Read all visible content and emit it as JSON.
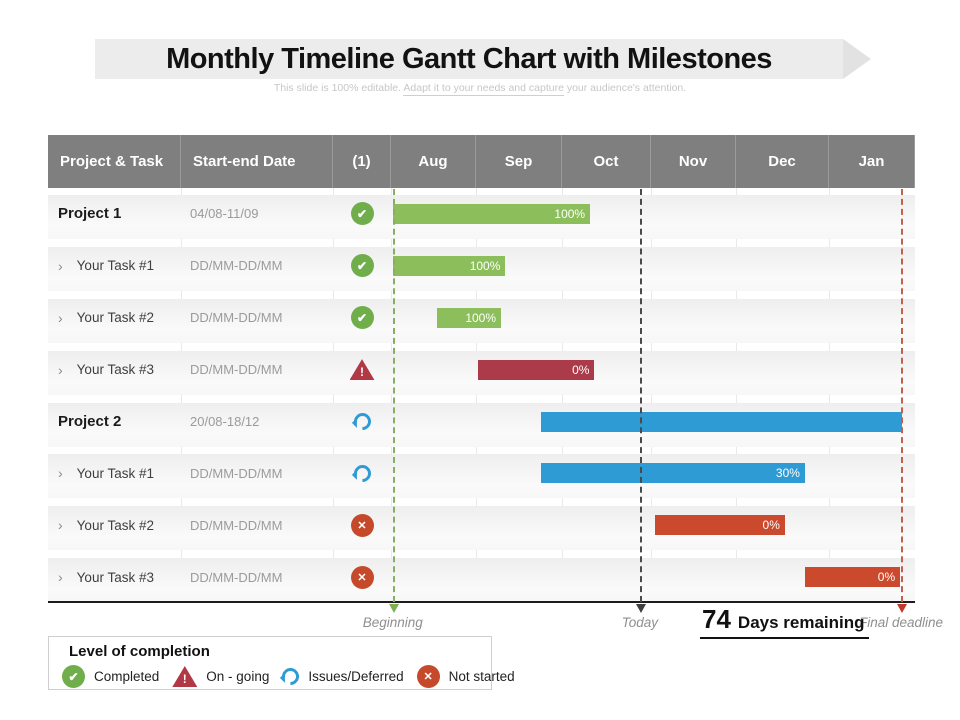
{
  "banner": {
    "title": "Monthly Timeline Gantt Chart with Milestones",
    "subtitle_prefix": "This slide is 100% editable. ",
    "subtitle_underlined": "Adapt it to your needs and capture",
    "subtitle_suffix": " your audience's attention."
  },
  "table": {
    "headers": [
      "Project & Task",
      "Start-end Date",
      "(1)",
      "Aug",
      "Sep",
      "Oct",
      "Nov",
      "Dec",
      "Jan"
    ],
    "task_prefix": "›"
  },
  "chart_data": {
    "type": "bar",
    "subtype": "gantt-timeline",
    "months": [
      "Aug",
      "Sep",
      "Oct",
      "Nov",
      "Dec",
      "Jan"
    ],
    "position_unit": "months from start of Aug (0) to end of Jan (6)",
    "tasks": [
      {
        "name": "Project 1",
        "is_project": true,
        "date": "04/08-11/09",
        "status": "completed",
        "status_icon": "check-circle",
        "bar": {
          "start": 0.02,
          "end": 2.28,
          "color_key": "green",
          "label": "100%"
        }
      },
      {
        "name": "Your Task #1",
        "is_project": false,
        "date": "DD/MM-DD/MM",
        "status": "completed",
        "status_icon": "check-circle",
        "bar": {
          "start": 0.02,
          "end": 1.31,
          "color_key": "green",
          "label": "100%"
        }
      },
      {
        "name": "Your Task #2",
        "is_project": false,
        "date": "DD/MM-DD/MM",
        "status": "completed",
        "status_icon": "check-circle",
        "bar": {
          "start": 0.53,
          "end": 1.26,
          "color_key": "green",
          "label": "100%"
        }
      },
      {
        "name": "Your Task #3",
        "is_project": false,
        "date": "DD/MM-DD/MM",
        "status": "on-going",
        "status_icon": "warning-triangle",
        "bar": {
          "start": 1.0,
          "end": 2.33,
          "color_key": "crimson",
          "label": "0%"
        }
      },
      {
        "name": "Project 2",
        "is_project": true,
        "date": "20/08-18/12",
        "status": "issues-deferred",
        "status_icon": "refresh",
        "bar": {
          "start": 1.72,
          "end": 5.85,
          "color_key": "blue",
          "label": ""
        }
      },
      {
        "name": "Your Task #1",
        "is_project": false,
        "date": "DD/MM-DD/MM",
        "status": "issues-deferred",
        "status_icon": "refresh",
        "bar": {
          "start": 1.72,
          "end": 4.74,
          "color_key": "blue",
          "label": "30%"
        }
      },
      {
        "name": "Your Task #2",
        "is_project": false,
        "date": "DD/MM-DD/MM",
        "status": "not-started",
        "status_icon": "x-circle",
        "bar": {
          "start": 3.02,
          "end": 4.51,
          "color_key": "orange_red",
          "label": "0%"
        }
      },
      {
        "name": "Your Task #3",
        "is_project": false,
        "date": "DD/MM-DD/MM",
        "status": "not-started",
        "status_icon": "x-circle",
        "bar": {
          "start": 4.74,
          "end": 5.83,
          "color_key": "orange_red",
          "label": "0%"
        }
      }
    ],
    "markers": [
      {
        "id": "beginning",
        "label": "Beginning",
        "position": 0.02,
        "color": "#86af62",
        "arrow_color": "#7fb052"
      },
      {
        "id": "today",
        "label": "Today",
        "position": 2.85,
        "color": "#4a4a4a",
        "arrow_color": "#3f3f3f"
      },
      {
        "id": "final-deadline",
        "label": "Final deadline",
        "position": 5.84,
        "color": "#c4604a",
        "arrow_color": "#c0392b"
      }
    ],
    "days_remaining": {
      "value": "74",
      "label": "Days remaining"
    }
  },
  "legend": {
    "title": "Level of completion",
    "items": [
      {
        "icon": "check-circle",
        "label": "Completed"
      },
      {
        "icon": "warning-triangle",
        "label": "On - going"
      },
      {
        "icon": "refresh",
        "label": "Issues/Deferred"
      },
      {
        "icon": "x-circle",
        "label": "Not started"
      }
    ]
  },
  "colors": {
    "green": "#8cbe5c",
    "crimson": "#ac3b49",
    "blue": "#2e9bd5",
    "orange_red": "#cb4a2e",
    "header_gray": "#7f7f7f"
  },
  "icon_glyphs": {
    "check-circle": "✔",
    "warning-triangle": "!",
    "x-circle": "✕",
    "refresh": ""
  }
}
